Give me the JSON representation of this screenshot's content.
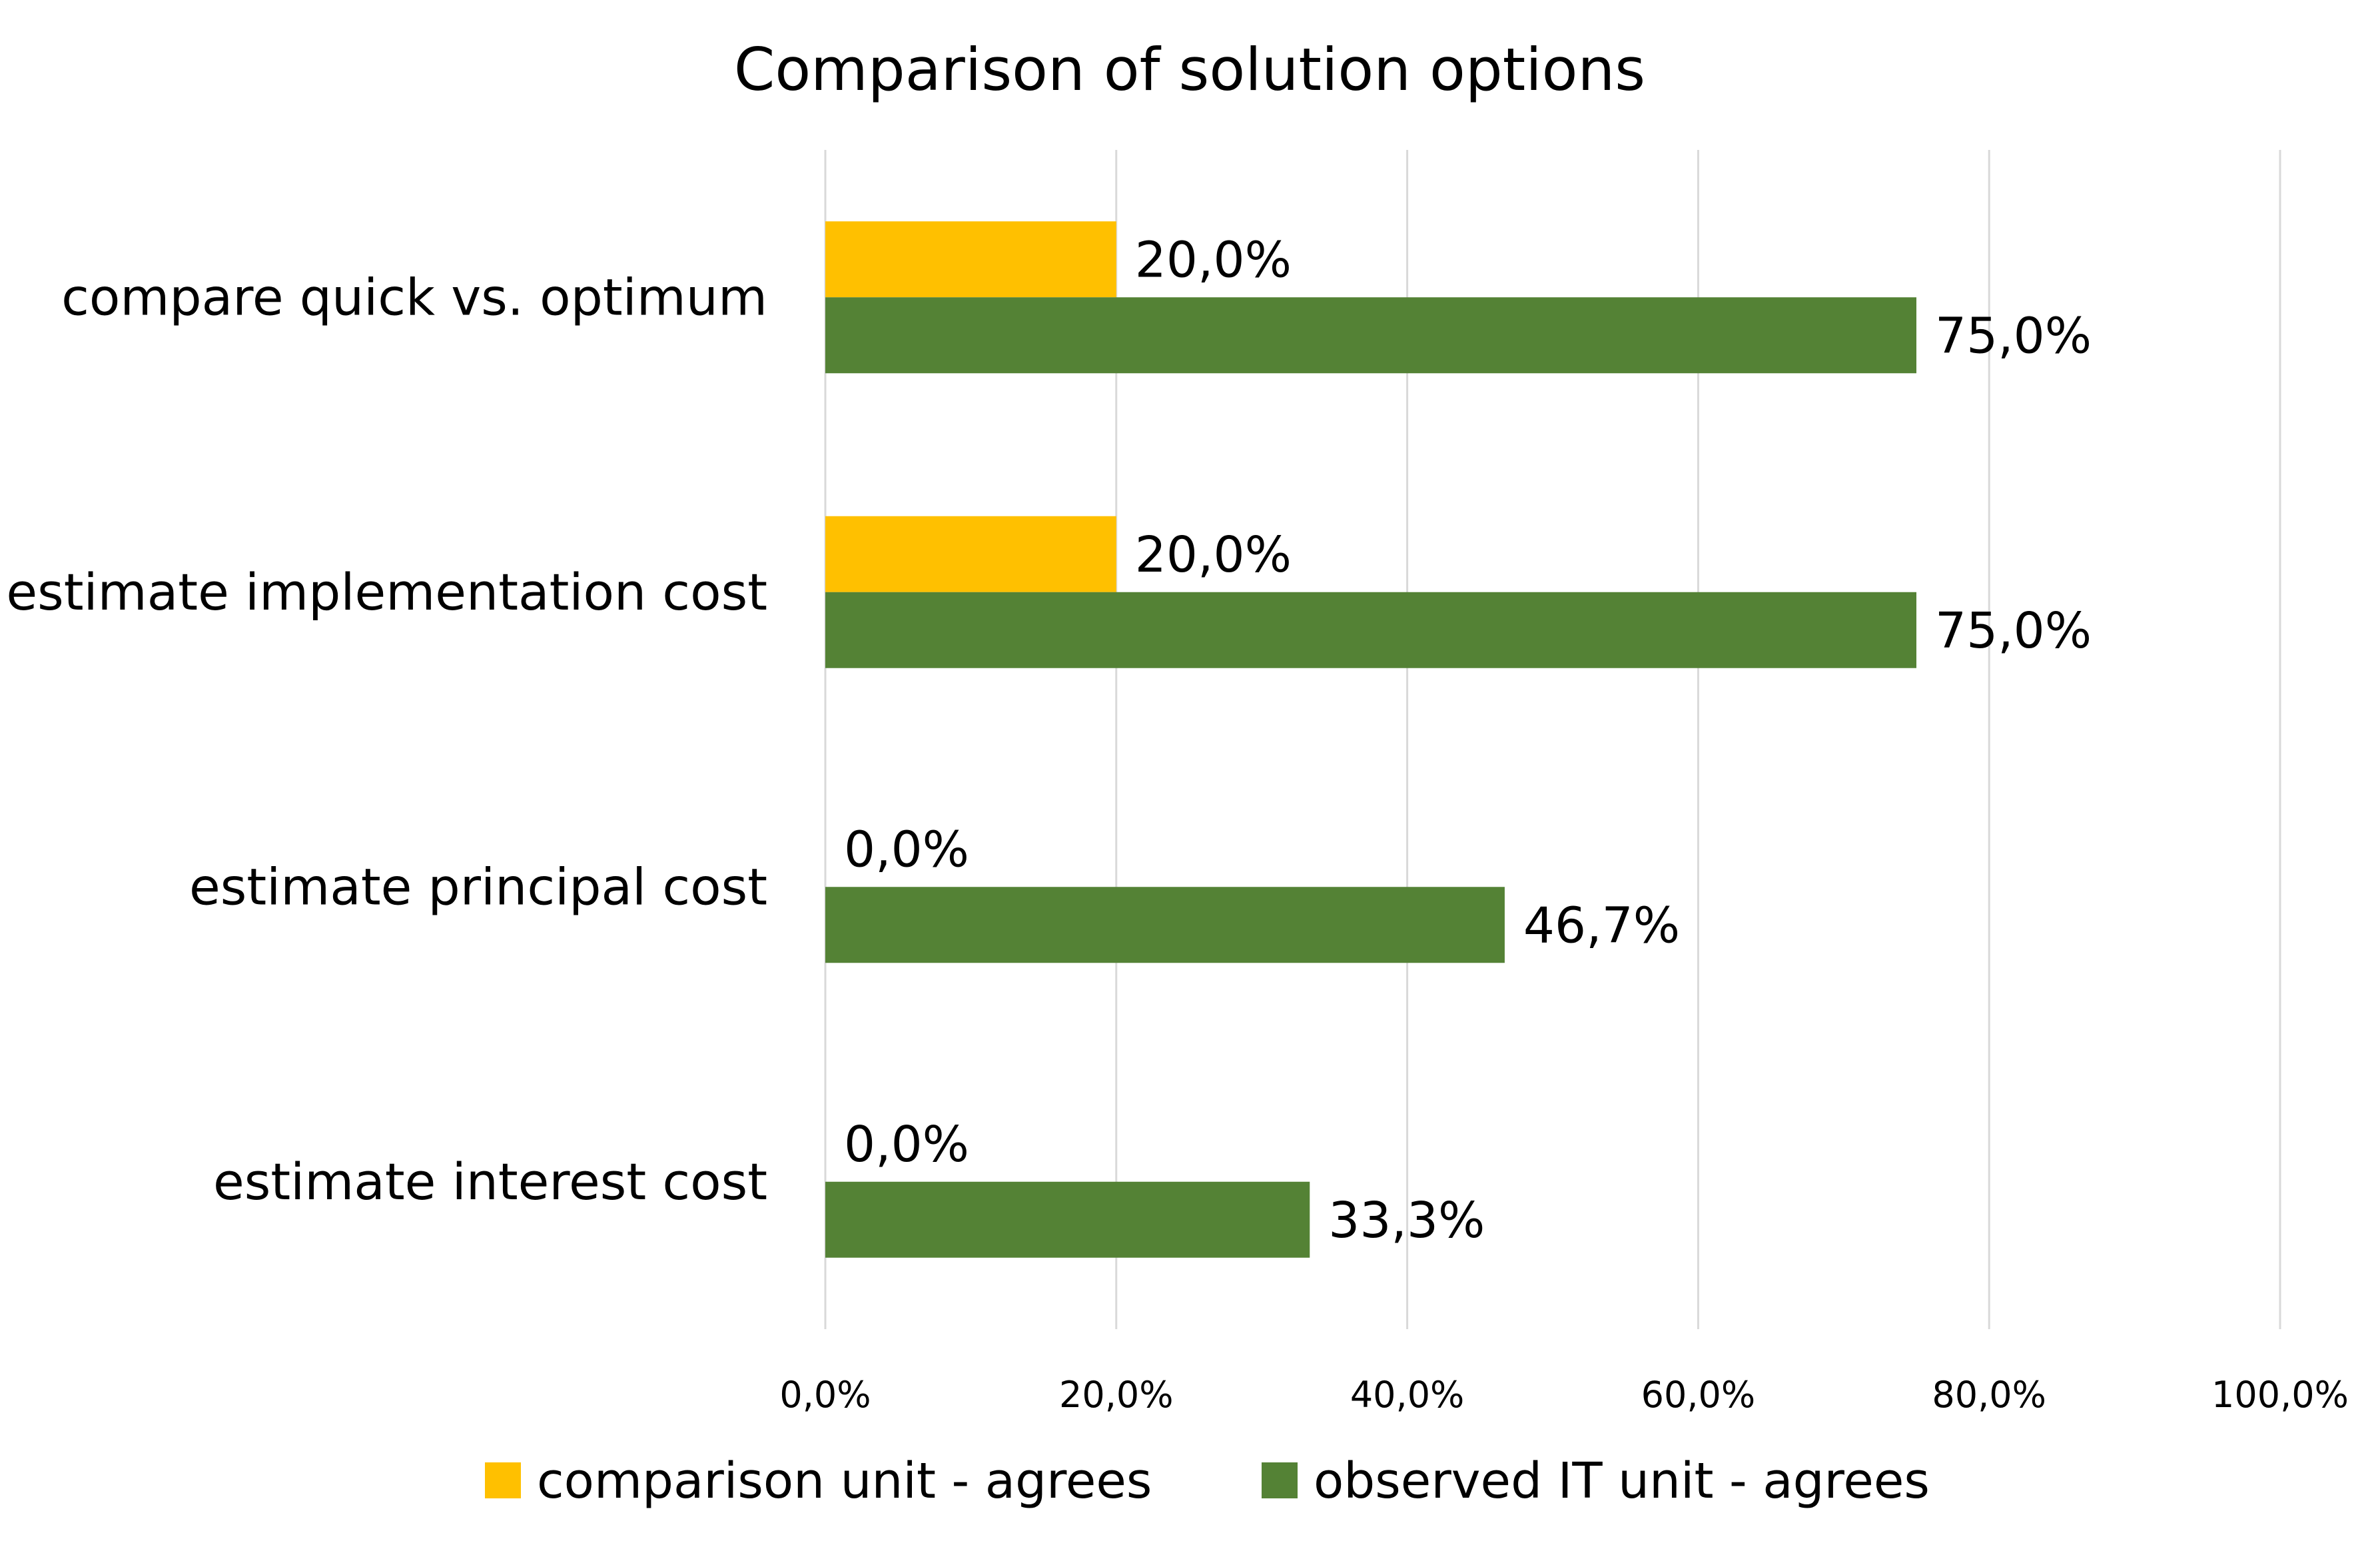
{
  "chart_data": {
    "type": "bar",
    "orientation": "horizontal",
    "title": "Comparison of solution options",
    "categories": [
      "compare quick vs. optimum",
      "estimate implementation cost",
      "estimate principal cost",
      "estimate interest cost"
    ],
    "series": [
      {
        "name": "comparison unit - agrees",
        "color": "#FFC000",
        "values": [
          20.0,
          20.0,
          0.0,
          0.0
        ],
        "value_labels": [
          "20,0%",
          "20,0%",
          "0,0%",
          "0,0%"
        ]
      },
      {
        "name": "observed IT unit - agrees",
        "color": "#548235",
        "values": [
          75.0,
          75.0,
          46.7,
          33.3
        ],
        "value_labels": [
          "75,0%",
          "75,0%",
          "46,7%",
          "33,3%"
        ]
      }
    ],
    "xlim": [
      0,
      100
    ],
    "x_ticks": [
      0,
      20,
      40,
      60,
      80,
      100
    ],
    "x_tick_labels": [
      "0,0%",
      "20,0%",
      "40,0%",
      "60,0%",
      "80,0%",
      "100,0%"
    ],
    "grid": "vertical",
    "legend_position": "bottom"
  }
}
